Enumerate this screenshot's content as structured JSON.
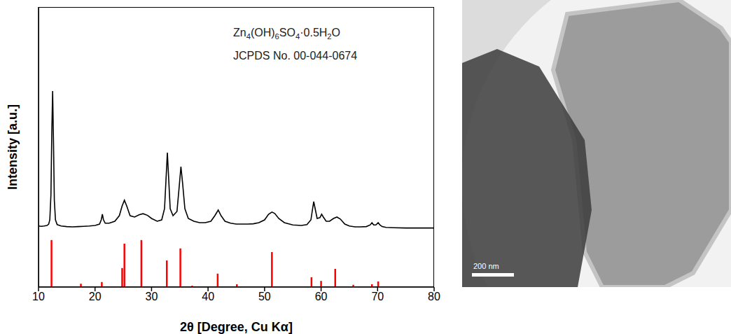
{
  "chart_data": {
    "type": "line",
    "x_label": "2θ [Degree, Cu Kα]",
    "y_label": "Intensity [a.u.]",
    "annotations": [
      "Zn4(OH)6SO4·0.5H2O",
      "JCPDS No. 00-044-0674"
    ],
    "xlim": [
      10,
      80
    ],
    "xticks": [
      10,
      20,
      30,
      40,
      50,
      60,
      70,
      80
    ],
    "ylim": [
      0,
      100
    ],
    "tick_labels": "x",
    "grid": false,
    "series": [
      {
        "type": "line",
        "color": "#000000",
        "x": [
          10,
          10.5,
          11,
          11.5,
          11.8,
          12.0,
          12.2,
          12.35,
          12.5,
          12.65,
          12.8,
          13.0,
          13.3,
          14,
          15,
          16,
          17,
          18,
          19,
          20,
          20.8,
          21.1,
          21.3,
          21.5,
          21.8,
          22.5,
          23.5,
          24.3,
          24.8,
          25.2,
          25.6,
          26.2,
          27,
          27.8,
          28.5,
          29.3,
          30,
          31,
          31.8,
          32.3,
          32.6,
          32.8,
          33.0,
          33.3,
          33.8,
          34.5,
          34.9,
          35.2,
          35.5,
          35.9,
          36.5,
          37.5,
          38.5,
          39.5,
          40.5,
          41.2,
          41.8,
          42.3,
          43,
          44,
          45,
          46,
          47,
          48,
          49,
          50,
          50.7,
          51.3,
          51.8,
          52.5,
          53.5,
          55,
          56.5,
          57.5,
          58.2,
          58.5,
          58.7,
          58.9,
          59.3,
          59.8,
          60.1,
          60.4,
          60.9,
          61.5,
          62.2,
          62.8,
          63.4,
          64.2,
          65,
          66,
          67,
          68,
          68.7,
          69.0,
          69.3,
          69.7,
          70.1,
          70.4,
          70.8,
          71.5,
          73,
          75,
          77,
          80
        ],
        "values": [
          21.8,
          21.7,
          21.8,
          22,
          22.5,
          24,
          33,
          55,
          70,
          52,
          31,
          24,
          22.3,
          21.8,
          21.6,
          21.5,
          21.6,
          21.7,
          21.8,
          22,
          22.5,
          24,
          26,
          24,
          22.8,
          22.8,
          23.5,
          25.5,
          29,
          31,
          29,
          25.5,
          25,
          25.8,
          26.2,
          25.6,
          24.5,
          23.5,
          24,
          28,
          40,
          48,
          40,
          28,
          25.5,
          27,
          36,
          43,
          37,
          28,
          24.5,
          23.5,
          23,
          23,
          23.5,
          25.5,
          27.5,
          25.5,
          23.5,
          22.8,
          22.5,
          22.5,
          22.5,
          22.6,
          23,
          24,
          26,
          26.8,
          26.3,
          24.5,
          23,
          22.2,
          22,
          22.3,
          24,
          28,
          30.5,
          28.5,
          24.5,
          24.8,
          26,
          25,
          23.5,
          23.5,
          24.5,
          25,
          24.3,
          22.5,
          21.8,
          21.5,
          21.5,
          21.6,
          22.2,
          23,
          22.2,
          22.2,
          23,
          22.2,
          21.6,
          21.3,
          21.2,
          21.1,
          21.1,
          21.1
        ]
      },
      {
        "type": "bar",
        "color": "#ff0000",
        "x": [
          12.3,
          17.5,
          21.2,
          24.8,
          25.2,
          28.2,
          32.7,
          35.1,
          37.2,
          41.7,
          45.1,
          51.3,
          58.3,
          60.0,
          62.5,
          65.7,
          69.0,
          70.1
        ],
        "values": [
          16.8,
          1.2,
          1.8,
          6.8,
          15.5,
          16.8,
          9.5,
          13.8,
          0.5,
          4.8,
          1,
          12.5,
          3.5,
          2.2,
          6.5,
          0.8,
          1,
          2
        ]
      }
    ]
  },
  "image": {
    "scale_bar": "200 nm"
  }
}
